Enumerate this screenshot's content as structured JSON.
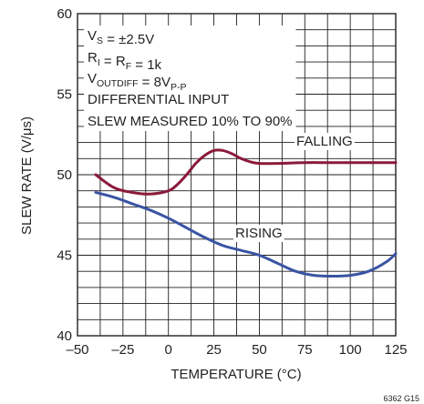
{
  "chart_data": {
    "type": "line",
    "title": "",
    "xlabel": "TEMPERATURE (°C)",
    "ylabel": "SLEW RATE (V/μs)",
    "xlim": [
      -50,
      125
    ],
    "ylim": [
      40,
      60
    ],
    "x_ticks": [
      "–50",
      "–25",
      "0",
      "25",
      "50",
      "75",
      "100",
      "125"
    ],
    "y_ticks": [
      "40",
      "45",
      "50",
      "55",
      "60"
    ],
    "grid": true,
    "conditions": [
      {
        "main": "V",
        "sub": "S",
        "rest": " = ±2.5V"
      },
      {
        "main": "R",
        "sub": "I",
        "rest": " = R",
        "sub2": "F",
        "rest2": " = 1k"
      },
      {
        "main": "V",
        "sub": "OUTDIFF",
        "rest": " = 8V",
        "sub2": "P-P",
        "rest2": ""
      },
      {
        "main": "DIFFERENTIAL INPUT"
      },
      {
        "main": "SLEW MEASURED 10% TO 90%"
      }
    ],
    "series": [
      {
        "name": "FALLING",
        "color": "#8b1a3a",
        "x": [
          -40,
          -30,
          -20,
          -10,
          0,
          5,
          10,
          15,
          20,
          25,
          30,
          35,
          40,
          45,
          50,
          60,
          75,
          90,
          105,
          125
        ],
        "y": [
          50.0,
          49.2,
          48.9,
          48.8,
          49.0,
          49.4,
          50.0,
          50.7,
          51.2,
          51.5,
          51.5,
          51.3,
          51.0,
          50.8,
          50.7,
          50.7,
          50.75,
          50.75,
          50.75,
          50.75
        ]
      },
      {
        "name": "RISING",
        "color": "#3a54a4",
        "x": [
          -40,
          -30,
          -20,
          -10,
          0,
          10,
          20,
          30,
          40,
          50,
          60,
          70,
          80,
          90,
          100,
          110,
          120,
          125
        ],
        "y": [
          48.9,
          48.6,
          48.2,
          47.8,
          47.3,
          46.7,
          46.1,
          45.6,
          45.3,
          45.0,
          44.5,
          44.0,
          43.75,
          43.7,
          43.75,
          44.0,
          44.6,
          45.1
        ]
      }
    ],
    "figure_id": "6362 G15"
  }
}
